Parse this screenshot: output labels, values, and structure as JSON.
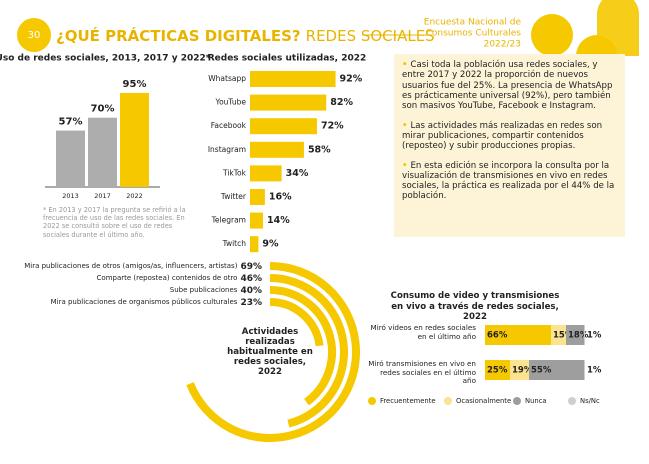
{
  "header": {
    "page_number": "30",
    "title_bold": "¿QUÉ PRÁCTICAS DIGITALES?",
    "title_light": "REDES SOCIALES",
    "survey": [
      "Encuesta Nacional de",
      "Consumos Culturales",
      "2022/23"
    ]
  },
  "chart_data": [
    {
      "type": "column",
      "title": "Uso de redes sociales, 2013, 2017 y 2022*",
      "categories": [
        "2013",
        "2017",
        "2022"
      ],
      "values": [
        57,
        70,
        95
      ],
      "value_labels": [
        "57%",
        "70%",
        "95%"
      ],
      "colors": [
        "#adadad",
        "#adadad",
        "#f5c800"
      ],
      "note": "* En 2013 y 2017 la pregunta se refirió a la frecuencia de uso de las redes sociales. En 2022 se consultó sobre el uso de redes sociales durante el último año."
    },
    {
      "type": "hbar",
      "title": "Redes sociales utilizadas, 2022",
      "categories": [
        "Whatsapp",
        "YouTube",
        "Facebook",
        "Instagram",
        "TikTok",
        "Twitter",
        "Telegram",
        "Twitch"
      ],
      "values": [
        92,
        82,
        72,
        58,
        34,
        16,
        14,
        9
      ],
      "value_labels": [
        "92%",
        "82%",
        "72%",
        "58%",
        "34%",
        "16%",
        "14%",
        "9%"
      ],
      "color": "#f5c800"
    },
    {
      "type": "radial",
      "title": "Actividades realizadas habitualmente en redes sociales, 2022",
      "categories": [
        "Mira publicaciones de otros (amigos/as, influencers, artistas)",
        "Comparte (repostea) contenidos de otro",
        "Sube publicaciones",
        "Mira publicaciones de organismos públicos culturales"
      ],
      "values": [
        69,
        46,
        40,
        23
      ],
      "value_labels": [
        "69%",
        "46%",
        "40%",
        "23%"
      ],
      "color": "#f5c800"
    },
    {
      "type": "stacked-hbar",
      "title": "Consumo de video y  transmisiones en vivo a través de redes sociales, 2022",
      "categories": [
        "Miró videos en redes sociales en el último año",
        "Miró transmisiones en vivo en redes sociales en el último año"
      ],
      "series": [
        {
          "name": "Frecuentemente",
          "color": "#f5c800",
          "values": [
            66,
            25
          ],
          "value_labels": [
            "66%",
            "25%"
          ]
        },
        {
          "name": "Ocasionalmente",
          "color": "#fbe38f",
          "values": [
            15,
            19
          ],
          "value_labels": [
            "15%",
            "19%"
          ]
        },
        {
          "name": "Nunca",
          "color": "#9e9e9e",
          "values": [
            18,
            55
          ],
          "value_labels": [
            "18%",
            "55%"
          ]
        },
        {
          "name": "Ns/Nc",
          "color": "#cfcfcf",
          "values": [
            1,
            1
          ],
          "value_labels": [
            "1%",
            "1%"
          ]
        }
      ]
    }
  ],
  "summary": [
    "Casi toda la población usa redes sociales, y entre 2017 y 2022 la proporción de nuevos usuarios fue del 25%. La presencia de WhatsApp es prácticamente universal (92%), pero también son masivos YouTube, Facebook e Instagram.",
    "Las actividades más realizadas en redes son mirar publicaciones, compartir contenidos (reposteo) y subir producciones propias.",
    "En esta edición se incorpora la consulta por la visualización de transmisiones en vivo en redes sociales, la práctica es realizada por el 44% de la población."
  ]
}
